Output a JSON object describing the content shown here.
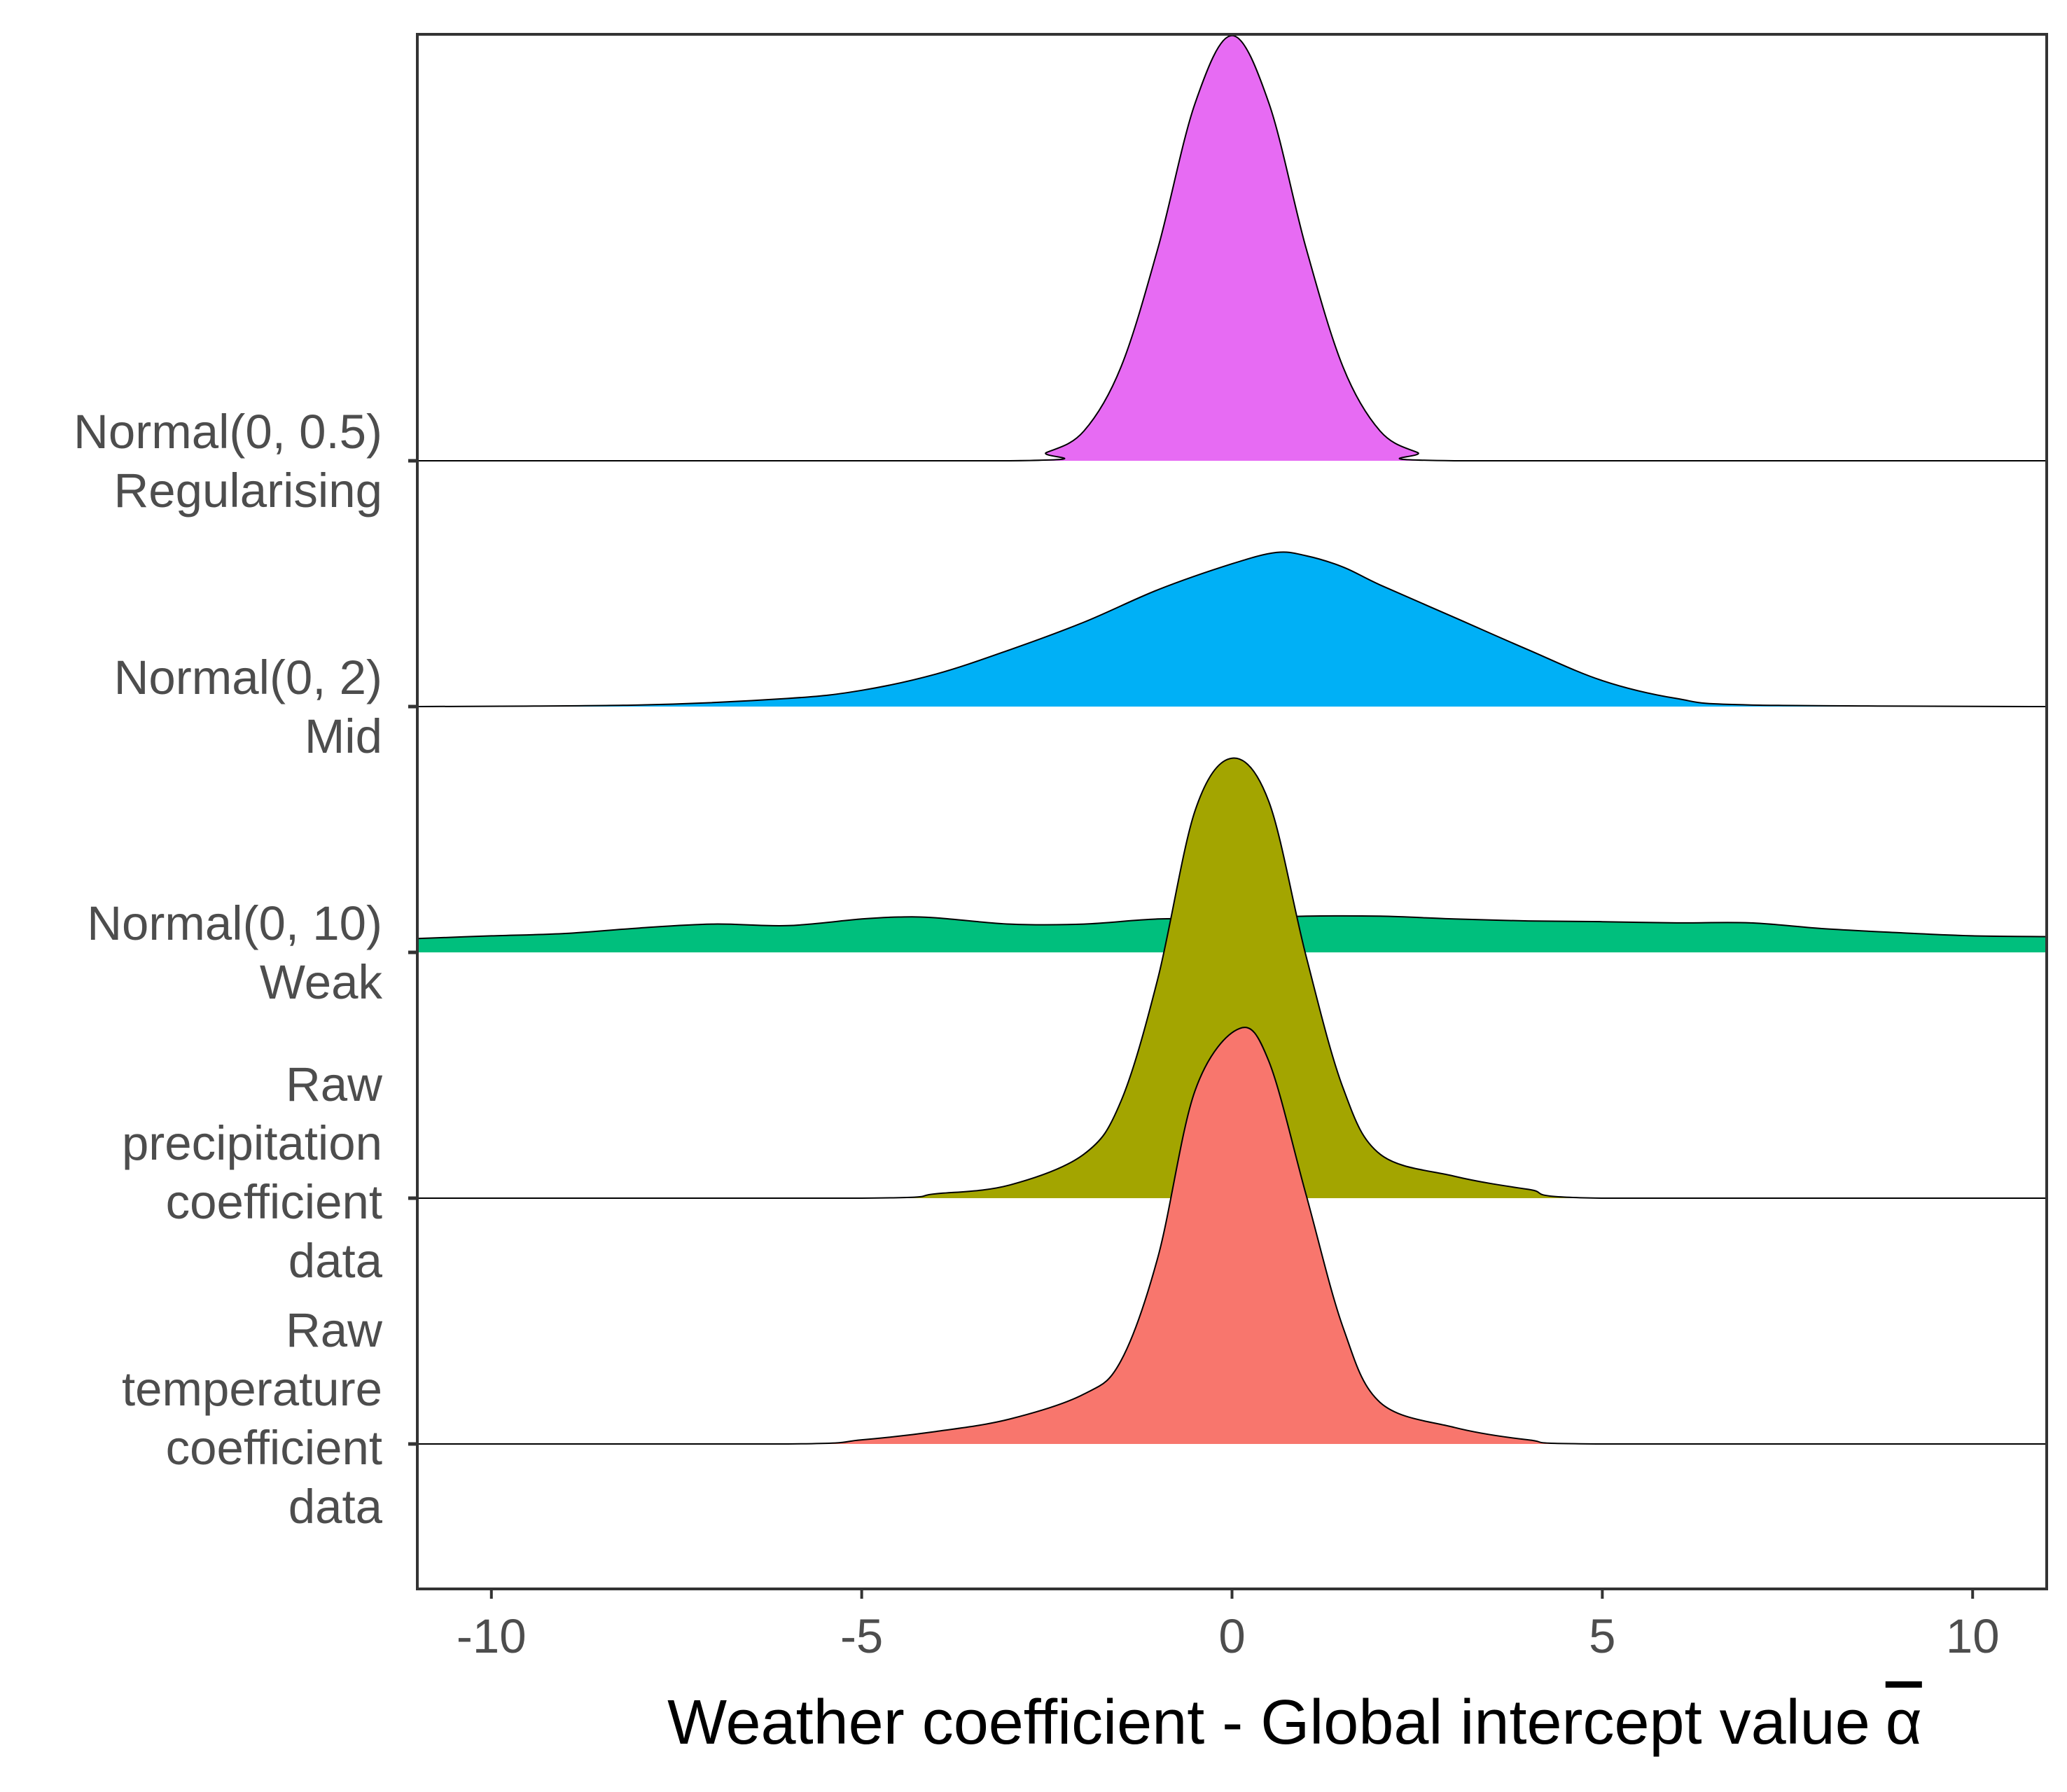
{
  "chart_data": {
    "type": "area",
    "subtype": "ridgeline density",
    "xlabel": "Weather coefficient - Global intercept value",
    "xlabel_symbol": "α",
    "xlabel_symbol_overline": true,
    "ylabel": "",
    "xlim": [
      -11,
      11
    ],
    "x_ticks": [
      -10,
      -5,
      0,
      5,
      10
    ],
    "x_tick_labels": [
      "-10",
      "-5",
      "0",
      "5",
      "10"
    ],
    "grid": false,
    "legend": "none",
    "categories": [
      [
        "Normal(0, 0.5)",
        "Regularising"
      ],
      [
        "Normal(0, 2)",
        "Mid"
      ],
      [
        "Normal(0, 10)",
        "Weak"
      ],
      [
        "Raw",
        "precipitation",
        "coefficient",
        "data"
      ],
      [
        "Raw",
        "temperature",
        "coefficient",
        "data"
      ]
    ],
    "series": [
      {
        "category_index": 0,
        "color": "#E76BF3",
        "height_units": 1.73,
        "x": [
          -11,
          -3,
          -2.5,
          -2,
          -1.5,
          -1,
          -0.5,
          0,
          0.5,
          1,
          1.5,
          2,
          2.5,
          3,
          11
        ],
        "y": [
          0,
          0,
          0.02,
          0.07,
          0.22,
          0.5,
          0.84,
          1.0,
          0.84,
          0.5,
          0.22,
          0.07,
          0.02,
          0,
          0
        ]
      },
      {
        "category_index": 1,
        "color": "#00B0F6",
        "height_units": 0.66,
        "x": [
          -11,
          -8,
          -6,
          -5,
          -4,
          -3,
          -2,
          -1,
          0,
          0.6,
          1,
          1.5,
          2,
          3,
          4,
          5,
          6,
          7,
          11
        ],
        "y": [
          0,
          0.01,
          0.05,
          0.1,
          0.2,
          0.35,
          0.52,
          0.72,
          0.88,
          0.95,
          0.93,
          0.86,
          0.75,
          0.55,
          0.35,
          0.16,
          0.05,
          0.01,
          0
        ]
      },
      {
        "category_index": 2,
        "color": "#00BF7D",
        "height_units": 0.16,
        "x": [
          -11,
          -10,
          -9,
          -8,
          -7,
          -6,
          -5,
          -4.5,
          -4,
          -3,
          -2,
          -1,
          0,
          1,
          2,
          3,
          4,
          5,
          6,
          7,
          8,
          9,
          10,
          11
        ],
        "y": [
          0.35,
          0.42,
          0.48,
          0.62,
          0.72,
          0.68,
          0.85,
          0.9,
          0.88,
          0.72,
          0.72,
          0.85,
          0.85,
          0.92,
          0.92,
          0.85,
          0.8,
          0.78,
          0.75,
          0.75,
          0.6,
          0.5,
          0.42,
          0.4
        ]
      },
      {
        "category_index": 3,
        "color": "#A3A500",
        "height_units": 1.79,
        "x": [
          -11,
          -5,
          -4,
          -3,
          -2,
          -1.5,
          -1,
          -0.5,
          0,
          0.5,
          1,
          1.5,
          2,
          3,
          4,
          5,
          11
        ],
        "y": [
          0,
          0,
          0.01,
          0.03,
          0.1,
          0.22,
          0.5,
          0.88,
          1.0,
          0.9,
          0.55,
          0.25,
          0.1,
          0.05,
          0.02,
          0,
          0
        ]
      },
      {
        "category_index": 4,
        "color": "#F8766D",
        "height_units": 1.69,
        "x": [
          -11,
          -6,
          -5,
          -4,
          -3,
          -2,
          -1.5,
          -1,
          -0.5,
          0.1,
          0.5,
          1,
          1.5,
          2,
          3,
          4,
          5,
          11
        ],
        "y": [
          0,
          0,
          0.01,
          0.03,
          0.06,
          0.12,
          0.2,
          0.45,
          0.85,
          1.0,
          0.92,
          0.6,
          0.28,
          0.1,
          0.04,
          0.01,
          0,
          0
        ]
      }
    ]
  }
}
